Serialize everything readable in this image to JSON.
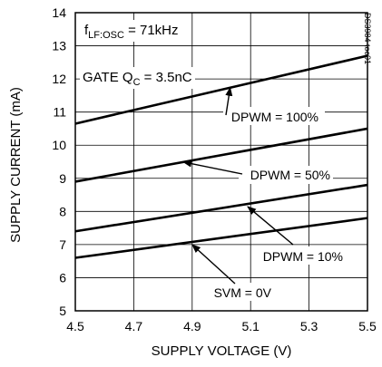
{
  "chart_data": {
    "type": "line",
    "xlabel": "SUPPLY VOLTAGE (V)",
    "ylabel": "SUPPLY CURRENT (mA)",
    "xlim": [
      4.5,
      5.5
    ],
    "ylim": [
      5,
      14
    ],
    "x_ticks": [
      "4.5",
      "4.7",
      "4.9",
      "5.1",
      "5.3",
      "5.5"
    ],
    "y_ticks": [
      "5",
      "6",
      "7",
      "8",
      "9",
      "10",
      "11",
      "12",
      "13",
      "14"
    ],
    "grid": true,
    "series": [
      {
        "name": "DPWM = 100%",
        "x": [
          4.5,
          5.5
        ],
        "y": [
          10.65,
          12.7
        ]
      },
      {
        "name": "DPWM = 50%",
        "x": [
          4.5,
          5.5
        ],
        "y": [
          8.9,
          10.5
        ]
      },
      {
        "name": "DPWM = 10%",
        "x": [
          4.5,
          5.5
        ],
        "y": [
          7.4,
          8.8
        ]
      },
      {
        "name": "SVM = 0V",
        "x": [
          4.5,
          5.5
        ],
        "y": [
          6.6,
          7.8
        ]
      }
    ],
    "annotations": {
      "freq_prefix": "f",
      "freq_sub": "LF:OSC",
      "freq_value": " = 71kHz",
      "gate_prefix": "GATE Q",
      "gate_sub": "C",
      "gate_value": " = 3.5nC",
      "side_code": "DS3984 toc01"
    }
  }
}
